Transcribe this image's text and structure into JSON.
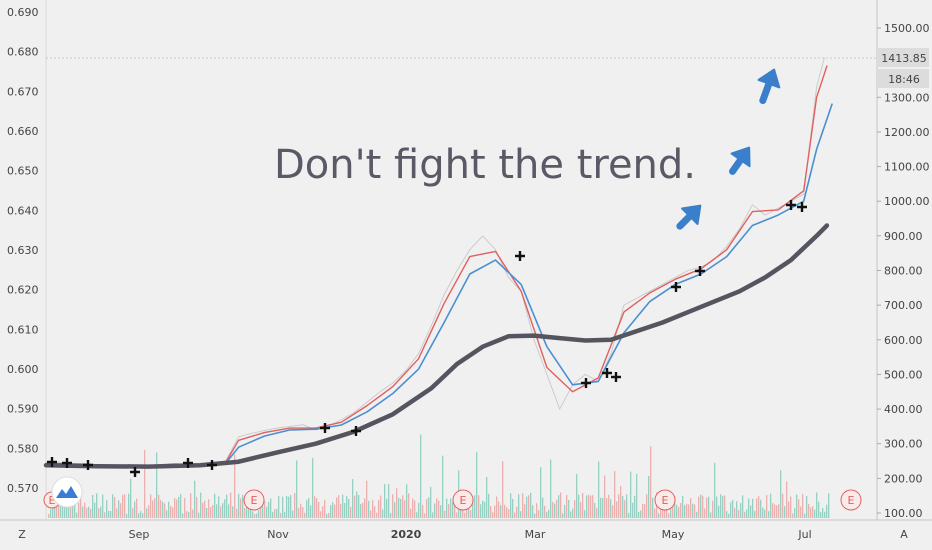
{
  "chart_data": {
    "type": "line",
    "title": "Don't fight the trend.",
    "xlabel": "",
    "ylabel": "",
    "x_tick_labels": [
      "Sep",
      "Nov",
      "2020",
      "Mar",
      "May",
      "Jul"
    ],
    "left_axis": {
      "ticks": [
        "0.690",
        "0.680",
        "0.670",
        "0.660",
        "0.650",
        "0.640",
        "0.630",
        "0.620",
        "0.610",
        "0.600",
        "0.590",
        "0.580",
        "0.570"
      ],
      "ylim": [
        0.567,
        0.693
      ]
    },
    "right_axis": {
      "ticks": [
        "1500.00",
        "1400.00",
        "1300.00",
        "1200.00",
        "1100.00",
        "1000.00",
        "900.00",
        "800.00",
        "700.00",
        "600.00",
        "500.00",
        "400.00",
        "300.00",
        "200.00",
        "100.00"
      ],
      "ylim": [
        85,
        1535
      ]
    },
    "price_label": "1413.85",
    "time_label": "18:46",
    "grid": false,
    "legend": "none",
    "earnings_marker": "E",
    "axis_corner_left": "Z",
    "axis_corner_right": "A",
    "series": [
      {
        "role": "price",
        "color": "#c8c8c8",
        "values": [
          [
            0,
            245
          ],
          [
            5,
            247
          ],
          [
            10,
            242
          ],
          [
            15,
            243
          ],
          [
            20,
            238
          ],
          [
            25,
            236
          ],
          [
            30,
            234
          ],
          [
            35,
            232
          ],
          [
            40,
            236
          ],
          [
            45,
            240
          ],
          [
            50,
            243
          ],
          [
            55,
            241
          ],
          [
            60,
            240
          ],
          [
            65,
            244
          ],
          [
            70,
            250
          ],
          [
            75,
            320
          ],
          [
            80,
            330
          ],
          [
            85,
            338
          ],
          [
            90,
            345
          ],
          [
            95,
            350
          ],
          [
            100,
            355
          ],
          [
            105,
            340
          ],
          [
            110,
            350
          ],
          [
            115,
            370
          ],
          [
            120,
            390
          ],
          [
            125,
            420
          ],
          [
            130,
            450
          ],
          [
            135,
            475
          ],
          [
            140,
            510
          ],
          [
            145,
            560
          ],
          [
            150,
            640
          ],
          [
            155,
            730
          ],
          [
            160,
            800
          ],
          [
            165,
            860
          ],
          [
            170,
            900
          ],
          [
            175,
            860
          ],
          [
            180,
            780
          ],
          [
            185,
            740
          ],
          [
            190,
            600
          ],
          [
            195,
            500
          ],
          [
            200,
            400
          ],
          [
            205,
            470
          ],
          [
            210,
            500
          ],
          [
            215,
            480
          ],
          [
            220,
            560
          ],
          [
            225,
            700
          ],
          [
            230,
            720
          ],
          [
            235,
            740
          ],
          [
            240,
            760
          ],
          [
            245,
            780
          ],
          [
            250,
            800
          ],
          [
            255,
            810
          ],
          [
            260,
            830
          ],
          [
            265,
            870
          ],
          [
            270,
            920
          ],
          [
            275,
            990
          ],
          [
            280,
            960
          ],
          [
            285,
            980
          ],
          [
            290,
            1000
          ],
          [
            295,
            1020
          ],
          [
            300,
            1330
          ],
          [
            303,
            1413
          ]
        ]
      },
      {
        "role": "fast_ma",
        "color": "#e06060",
        "values": [
          [
            0,
            243
          ],
          [
            10,
            242
          ],
          [
            20,
            239
          ],
          [
            30,
            235
          ],
          [
            40,
            236
          ],
          [
            50,
            241
          ],
          [
            60,
            241
          ],
          [
            70,
            247
          ],
          [
            75,
            310
          ],
          [
            85,
            332
          ],
          [
            95,
            345
          ],
          [
            105,
            345
          ],
          [
            115,
            362
          ],
          [
            125,
            410
          ],
          [
            135,
            465
          ],
          [
            145,
            545
          ],
          [
            155,
            705
          ],
          [
            165,
            840
          ],
          [
            175,
            855
          ],
          [
            185,
            740
          ],
          [
            195,
            520
          ],
          [
            205,
            450
          ],
          [
            215,
            490
          ],
          [
            225,
            680
          ],
          [
            235,
            735
          ],
          [
            245,
            775
          ],
          [
            255,
            805
          ],
          [
            265,
            860
          ],
          [
            275,
            970
          ],
          [
            285,
            975
          ],
          [
            295,
            1030
          ],
          [
            300,
            1300
          ],
          [
            304,
            1390
          ]
        ]
      },
      {
        "role": "medium_ma",
        "color": "#4a90d0",
        "values": [
          [
            0,
            240
          ],
          [
            10,
            240
          ],
          [
            20,
            238
          ],
          [
            30,
            236
          ],
          [
            40,
            236
          ],
          [
            50,
            239
          ],
          [
            60,
            240
          ],
          [
            70,
            244
          ],
          [
            75,
            290
          ],
          [
            85,
            322
          ],
          [
            95,
            340
          ],
          [
            105,
            342
          ],
          [
            115,
            354
          ],
          [
            125,
            392
          ],
          [
            135,
            445
          ],
          [
            145,
            515
          ],
          [
            155,
            650
          ],
          [
            165,
            790
          ],
          [
            175,
            830
          ],
          [
            185,
            760
          ],
          [
            195,
            580
          ],
          [
            205,
            470
          ],
          [
            215,
            480
          ],
          [
            225,
            620
          ],
          [
            235,
            710
          ],
          [
            245,
            760
          ],
          [
            255,
            790
          ],
          [
            265,
            840
          ],
          [
            275,
            930
          ],
          [
            285,
            960
          ],
          [
            295,
            1000
          ],
          [
            300,
            1150
          ],
          [
            306,
            1280
          ]
        ]
      },
      {
        "role": "slow_ma",
        "color": "#555560",
        "values": [
          [
            0,
            238
          ],
          [
            20,
            235
          ],
          [
            40,
            234
          ],
          [
            60,
            238
          ],
          [
            75,
            248
          ],
          [
            90,
            275
          ],
          [
            105,
            300
          ],
          [
            120,
            335
          ],
          [
            135,
            385
          ],
          [
            150,
            460
          ],
          [
            160,
            530
          ],
          [
            170,
            580
          ],
          [
            180,
            610
          ],
          [
            190,
            612
          ],
          [
            200,
            605
          ],
          [
            210,
            598
          ],
          [
            220,
            600
          ],
          [
            230,
            625
          ],
          [
            240,
            650
          ],
          [
            250,
            680
          ],
          [
            260,
            710
          ],
          [
            270,
            740
          ],
          [
            280,
            780
          ],
          [
            290,
            830
          ],
          [
            300,
            900
          ],
          [
            304,
            930
          ]
        ]
      }
    ]
  }
}
